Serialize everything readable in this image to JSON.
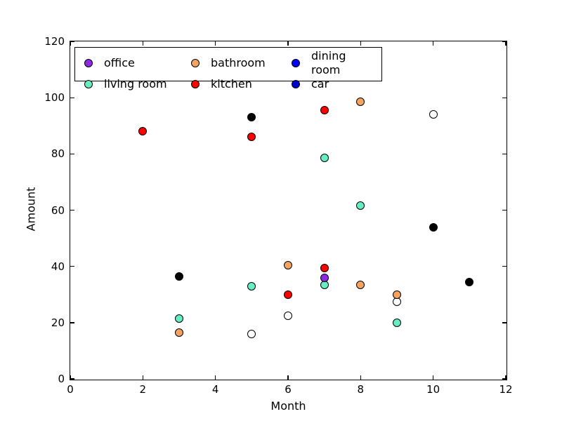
{
  "figure": {
    "background": "#FFFFFF",
    "frame_color": "#000000"
  },
  "chart_data": {
    "type": "scatter",
    "title": "",
    "xlabel": "Month",
    "ylabel": "Amount",
    "xlim": [
      0,
      12
    ],
    "ylim": [
      0,
      120
    ],
    "xticks": [
      "0",
      "2",
      "4",
      "6",
      "8",
      "10",
      "12"
    ],
    "yticks": [
      "0",
      "20",
      "40",
      "60",
      "80",
      "100",
      "120"
    ],
    "grid": false,
    "legend_position": "upper-left",
    "marker": "circle",
    "marker_edge_color": "#000000",
    "series": [
      {
        "name": "office",
        "color": "#8A2BE2",
        "in_legend": true,
        "draw_order": 8,
        "points": [
          [
            7,
            36
          ]
        ]
      },
      {
        "name": "living room",
        "color": "#66EDC4",
        "in_legend": true,
        "draw_order": 3,
        "points": [
          [
            3,
            21.5
          ],
          [
            5,
            33
          ],
          [
            7,
            78.5
          ],
          [
            7,
            33.5
          ],
          [
            8,
            61.5
          ],
          [
            9,
            20
          ]
        ]
      },
      {
        "name": "bathroom",
        "color": "#F4A460",
        "in_legend": true,
        "draw_order": 4,
        "points": [
          [
            3,
            16.5
          ],
          [
            6,
            40.5
          ],
          [
            8,
            98.5
          ],
          [
            8,
            33.5
          ],
          [
            9,
            30
          ]
        ]
      },
      {
        "name": "kitchen",
        "color": "#FF0000",
        "in_legend": true,
        "draw_order": 5,
        "points": [
          [
            2,
            88
          ],
          [
            5,
            86
          ],
          [
            6,
            30
          ],
          [
            7,
            95.5
          ],
          [
            7,
            39.5
          ]
        ]
      },
      {
        "name": "dining room",
        "color": "#0000FF",
        "in_legend": true,
        "draw_order": 6,
        "points": []
      },
      {
        "name": "car",
        "color": "#0000CD",
        "in_legend": true,
        "draw_order": 7,
        "points": []
      },
      {
        "name": "unlabeled black",
        "color": "#000000",
        "in_legend": false,
        "draw_order": 2,
        "points": [
          [
            3,
            36.5
          ],
          [
            5,
            93
          ],
          [
            10,
            54
          ],
          [
            11,
            34.5
          ]
        ]
      },
      {
        "name": "unlabeled white",
        "color": "#FFFFFF",
        "in_legend": false,
        "draw_order": 1,
        "points": [
          [
            5,
            16
          ],
          [
            6,
            22.5
          ],
          [
            9,
            27.5
          ],
          [
            10,
            94
          ]
        ]
      }
    ]
  }
}
